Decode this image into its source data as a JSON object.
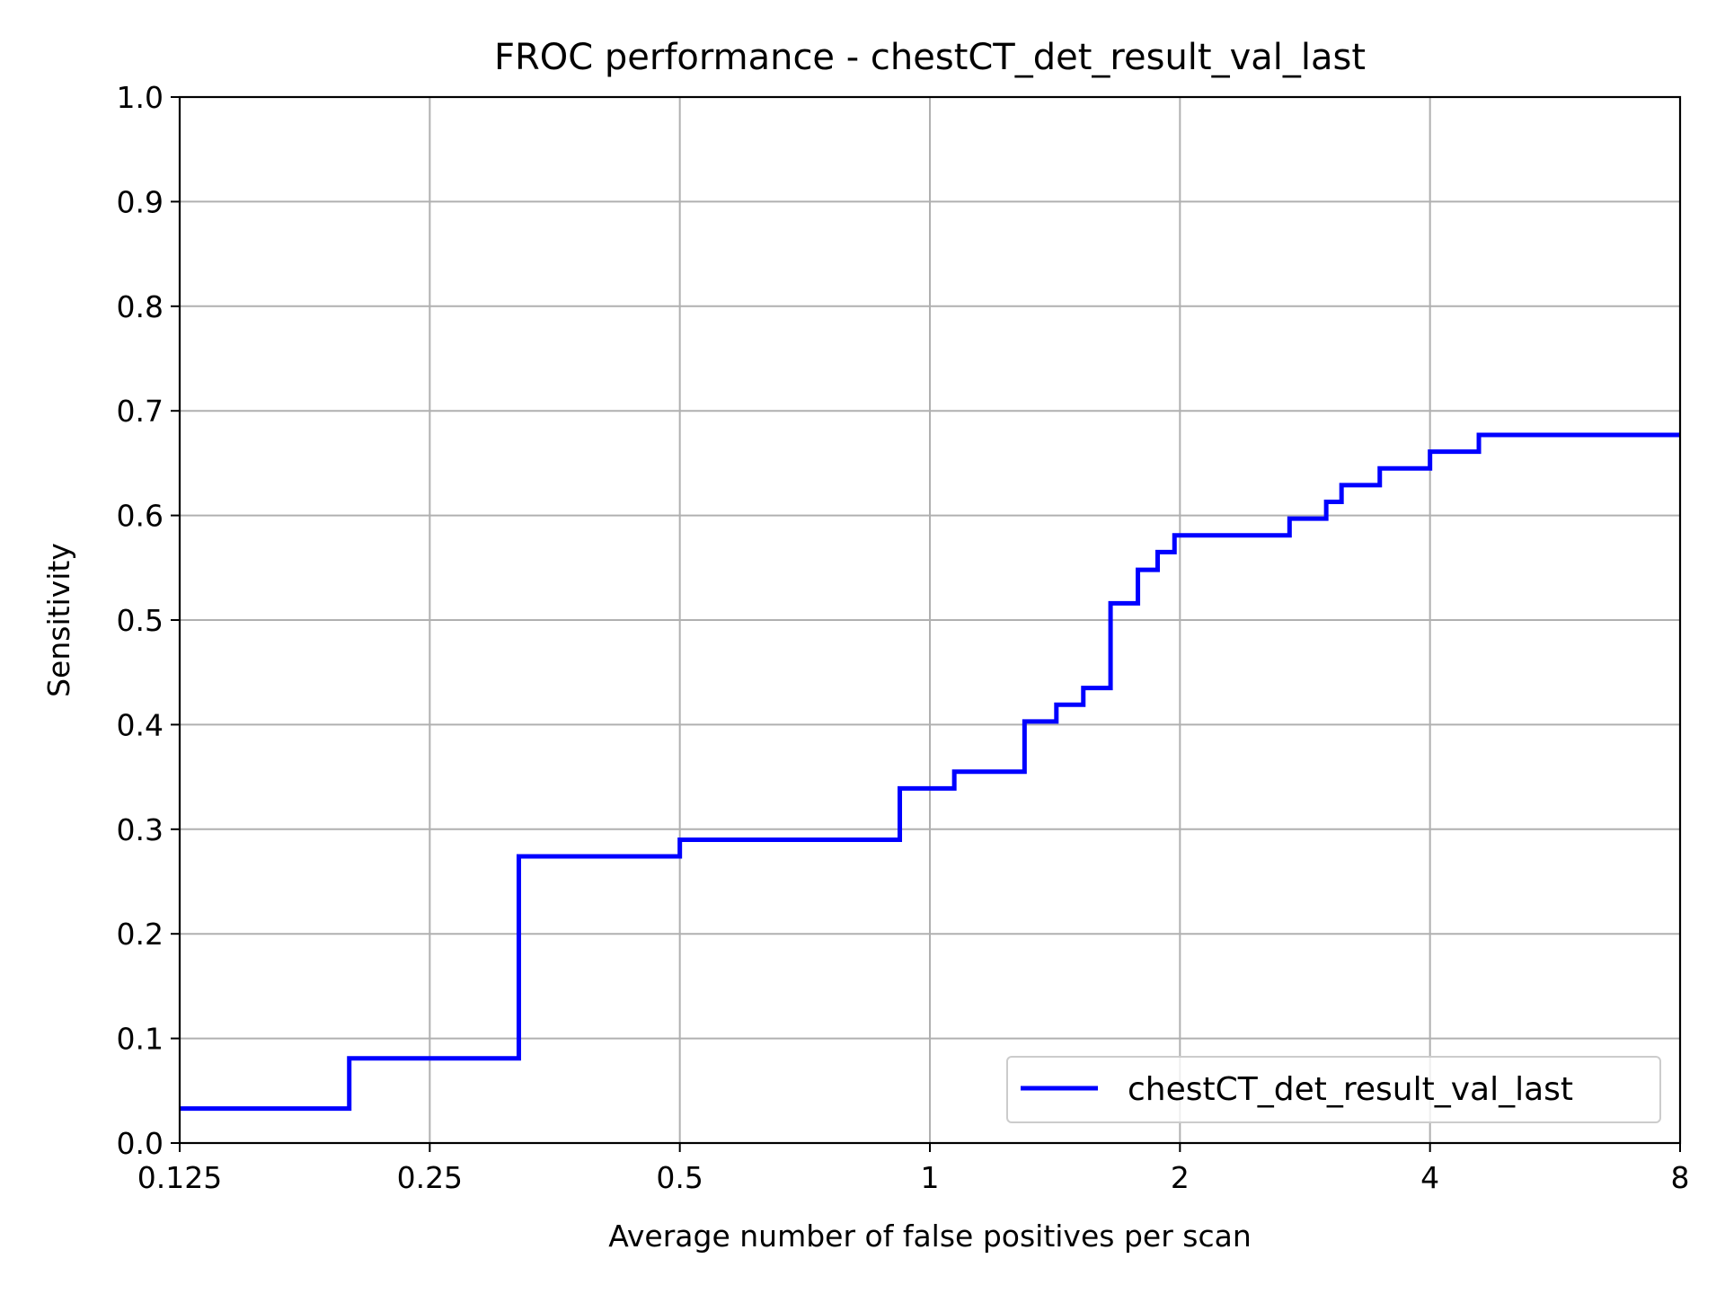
{
  "chart_data": {
    "type": "line",
    "title": "FROC performance - chestCT_det_result_val_last",
    "xlabel": "Average number of false positives per scan",
    "ylabel": "Sensitivity",
    "x_scale": "log2",
    "xlim": [
      0.125,
      8
    ],
    "ylim": [
      0.0,
      1.0
    ],
    "x_ticks": [
      0.125,
      0.25,
      0.5,
      1,
      2,
      4,
      8
    ],
    "x_tick_labels": [
      "0.125",
      "0.25",
      "0.5",
      "1",
      "2",
      "4",
      "8"
    ],
    "y_ticks": [
      0.0,
      0.1,
      0.2,
      0.3,
      0.4,
      0.5,
      0.6,
      0.7,
      0.8,
      0.9,
      1.0
    ],
    "y_tick_labels": [
      "0.0",
      "0.1",
      "0.2",
      "0.3",
      "0.4",
      "0.5",
      "0.6",
      "0.7",
      "0.8",
      "0.9",
      "1.0"
    ],
    "grid": true,
    "legend_position": "lower-right",
    "step": "post",
    "series": [
      {
        "name": "chestCT_det_result_val_last",
        "color": "#0000ff",
        "x": [
          0.125,
          0.2,
          0.32,
          0.5,
          0.92,
          1.07,
          1.3,
          1.42,
          1.53,
          1.65,
          1.78,
          1.88,
          1.97,
          2.71,
          3.0,
          3.13,
          3.48,
          4.0,
          4.58,
          8.0
        ],
        "y": [
          0.033,
          0.081,
          0.274,
          0.29,
          0.339,
          0.355,
          0.403,
          0.419,
          0.435,
          0.516,
          0.548,
          0.565,
          0.581,
          0.597,
          0.613,
          0.629,
          0.645,
          0.661,
          0.677,
          0.677
        ]
      }
    ]
  }
}
